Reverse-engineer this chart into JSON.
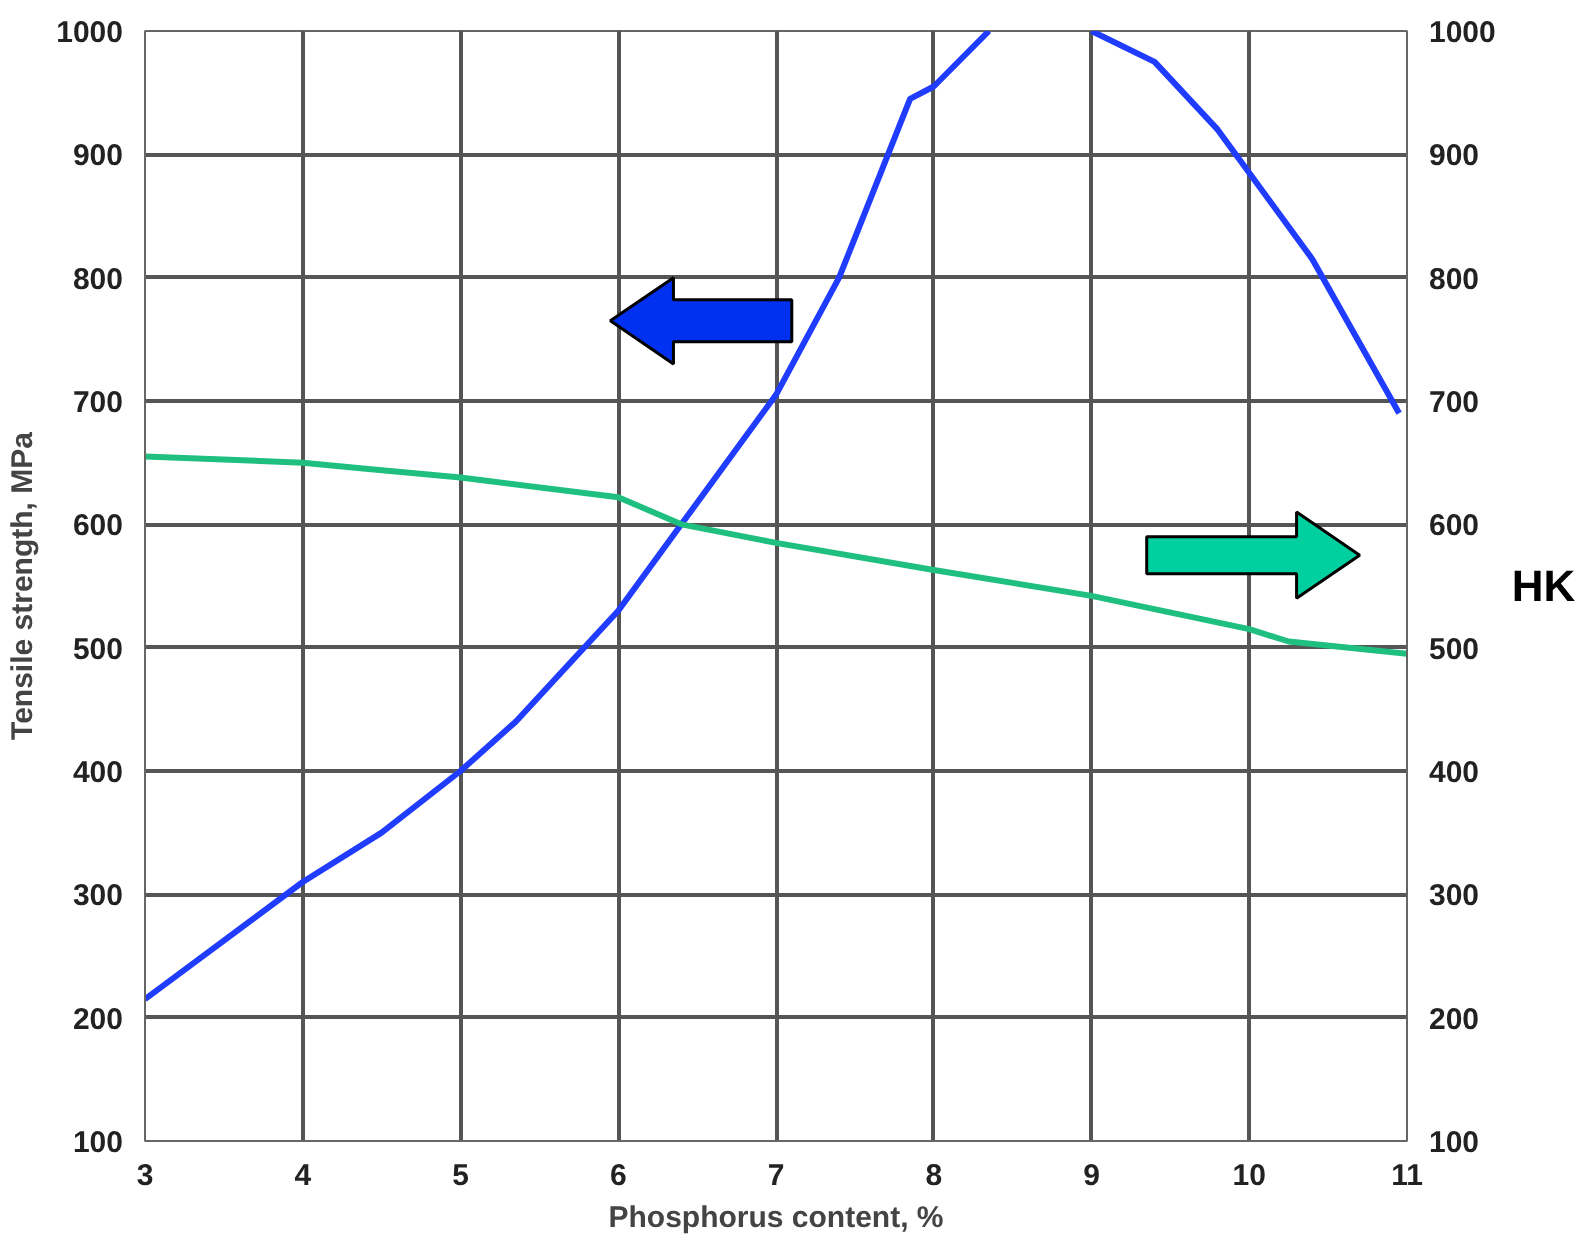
{
  "chart_data": {
    "type": "line",
    "xlabel": "Phosphorus content, %",
    "ylabel": "Tensile strength, MPa",
    "y2label": "HK",
    "xlim": [
      3,
      11
    ],
    "xticks": [
      3,
      4,
      5,
      6,
      7,
      8,
      9,
      10,
      11
    ],
    "ylim": [
      100,
      1000
    ],
    "yticks": [
      100,
      200,
      300,
      400,
      500,
      600,
      700,
      800,
      900,
      1000
    ],
    "y2lim": [
      100,
      1000
    ],
    "y2ticks": [
      100,
      200,
      300,
      400,
      500,
      600,
      700,
      800,
      900,
      1000
    ],
    "grid": true,
    "line_style": "solid",
    "series": [
      {
        "color": "#1f3cff",
        "x": [
          3,
          4,
          4.5,
          5,
          5.35,
          6,
          6.4,
          7,
          7.4,
          7.85,
          8,
          8.35,
          8.7,
          9,
          9.4,
          9.8,
          10.4,
          10.95
        ],
        "values": [
          215,
          310,
          350,
          400,
          440,
          530,
          600,
          705,
          800,
          945,
          955,
          1000,
          null,
          1000,
          975,
          920,
          815,
          690
        ]
      },
      {
        "color": "#1fbf7f",
        "axis": "y2",
        "x": [
          3,
          4,
          4.4,
          5,
          6,
          6.4,
          7,
          8,
          9,
          10,
          10.25,
          11
        ],
        "values": [
          655,
          650,
          645,
          638,
          622,
          600,
          585,
          563,
          542,
          515,
          505,
          495
        ]
      }
    ]
  }
}
